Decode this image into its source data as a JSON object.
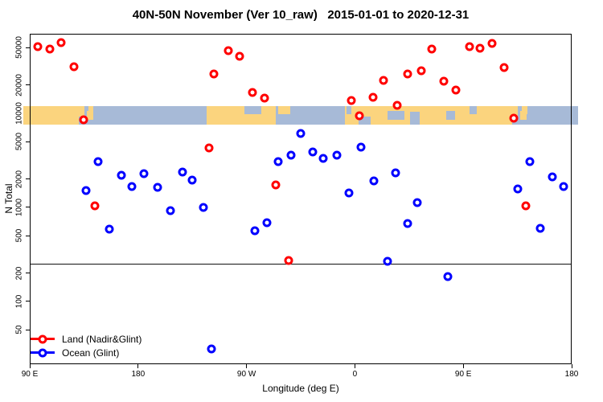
{
  "title": "40N-50N November (Ver 10_raw)   2015-01-01 to 2020-12-31",
  "chart_data": {
    "type": "scatter",
    "title": "40N-50N November (Ver 10_raw)   2015-01-01 to 2020-12-31",
    "xlabel": "Longitude (deg E)",
    "ylabel": "N Total",
    "y_scale": "log",
    "ylim": [
      21.5,
      70000
    ],
    "grid": false,
    "threshold_line_value": 250,
    "x_axis": {
      "span_deg": 450,
      "note": "x axis wraps: starts at 90E, goes eastward 450 degrees to 180",
      "ticks": [
        {
          "deg": 0,
          "label": "90 E"
        },
        {
          "deg": 90,
          "label": "180"
        },
        {
          "deg": 180,
          "label": "90 W"
        },
        {
          "deg": 270,
          "label": "0"
        },
        {
          "deg": 360,
          "label": "90 E"
        },
        {
          "deg": 450,
          "label": "180"
        }
      ]
    },
    "y_ticks": [
      50,
      100,
      200,
      500,
      1000,
      2000,
      5000,
      10000,
      20000,
      50000
    ],
    "legend": [
      {
        "label": "Land (Nadir&Glint)",
        "color": "#ff0000"
      },
      {
        "label": "Ocean (Glint)",
        "color": "#0000ff"
      }
    ],
    "series": [
      {
        "name": "Land (Nadir&Glint)",
        "color": "#ff0000",
        "points": [
          [
            7,
            51000
          ],
          [
            17,
            48000
          ],
          [
            26,
            56000
          ],
          [
            37,
            31000
          ],
          [
            45,
            8600
          ],
          [
            54,
            1040
          ],
          [
            149,
            4290
          ],
          [
            153,
            26000
          ],
          [
            165,
            46500
          ],
          [
            174,
            40000
          ],
          [
            185,
            16700
          ],
          [
            195,
            14500
          ],
          [
            204,
            1740
          ],
          [
            215,
            272
          ],
          [
            267,
            13700
          ],
          [
            274,
            9400
          ],
          [
            285,
            14800
          ],
          [
            294,
            22400
          ],
          [
            305,
            12200
          ],
          [
            314,
            26000
          ],
          [
            325,
            28400
          ],
          [
            334,
            48300
          ],
          [
            344,
            22000
          ],
          [
            354,
            17700
          ],
          [
            365,
            51200
          ],
          [
            374,
            49200
          ],
          [
            384,
            55500
          ],
          [
            394,
            30700
          ],
          [
            402,
            8900
          ],
          [
            412,
            1040
          ]
        ]
      },
      {
        "name": "Ocean (Glint)",
        "color": "#0000ff",
        "points": [
          [
            47,
            1510
          ],
          [
            57,
            3070
          ],
          [
            66,
            590
          ],
          [
            76,
            2200
          ],
          [
            85,
            1670
          ],
          [
            95,
            2300
          ],
          [
            106,
            1640
          ],
          [
            117,
            925
          ],
          [
            127,
            2380
          ],
          [
            135,
            1960
          ],
          [
            144,
            990
          ],
          [
            151,
            31
          ],
          [
            187,
            565
          ],
          [
            197,
            690
          ],
          [
            206,
            3070
          ],
          [
            217,
            3600
          ],
          [
            225,
            6100
          ],
          [
            235,
            3890
          ],
          [
            244,
            3320
          ],
          [
            255,
            3600
          ],
          [
            265,
            1430
          ],
          [
            275,
            4370
          ],
          [
            286,
            1910
          ],
          [
            297,
            267
          ],
          [
            304,
            2330
          ],
          [
            314,
            676
          ],
          [
            322,
            1120
          ],
          [
            347,
            184
          ],
          [
            405,
            1570
          ],
          [
            415,
            3070
          ],
          [
            424,
            600
          ],
          [
            434,
            2110
          ],
          [
            443,
            1670
          ]
        ]
      }
    ],
    "map_band": {
      "value_top": 12000,
      "value_bottom": 7500,
      "ocean_color": "#a7bad7",
      "land_color": "#fbd47e",
      "land_segments": [
        {
          "deg": [
            -5.3,
            45.5
          ],
          "pos": "full"
        },
        {
          "deg": [
            47.5,
            52.5
          ],
          "pos": "mid"
        },
        {
          "deg": [
            48.5,
            53
          ],
          "pos": "top"
        },
        {
          "deg": [
            147,
            204.5
          ],
          "pos": "full"
        },
        {
          "deg": [
            206.5,
            216
          ],
          "pos": "top"
        },
        {
          "deg": [
            262,
            405.5
          ],
          "pos": "full"
        },
        {
          "deg": [
            407.5,
            412.5
          ],
          "pos": "mid"
        },
        {
          "deg": [
            408.5,
            413
          ],
          "pos": "top"
        }
      ],
      "water_patches": [
        {
          "deg": [
            40.5,
            47
          ],
          "pos": "bottom"
        },
        {
          "deg": [
            178,
            192
          ],
          "pos": "top"
        },
        {
          "deg": [
            263,
            267
          ],
          "pos": "top"
        },
        {
          "deg": [
            273,
            283
          ],
          "pos": "bottom"
        },
        {
          "deg": [
            297,
            311
          ],
          "pos": "mid"
        },
        {
          "deg": [
            316,
            324
          ],
          "pos": "tall"
        },
        {
          "deg": [
            346,
            353
          ],
          "pos": "mid"
        },
        {
          "deg": [
            365,
            371
          ],
          "pos": "top"
        },
        {
          "deg": [
            400.5,
            407
          ],
          "pos": "bottom"
        }
      ]
    }
  }
}
